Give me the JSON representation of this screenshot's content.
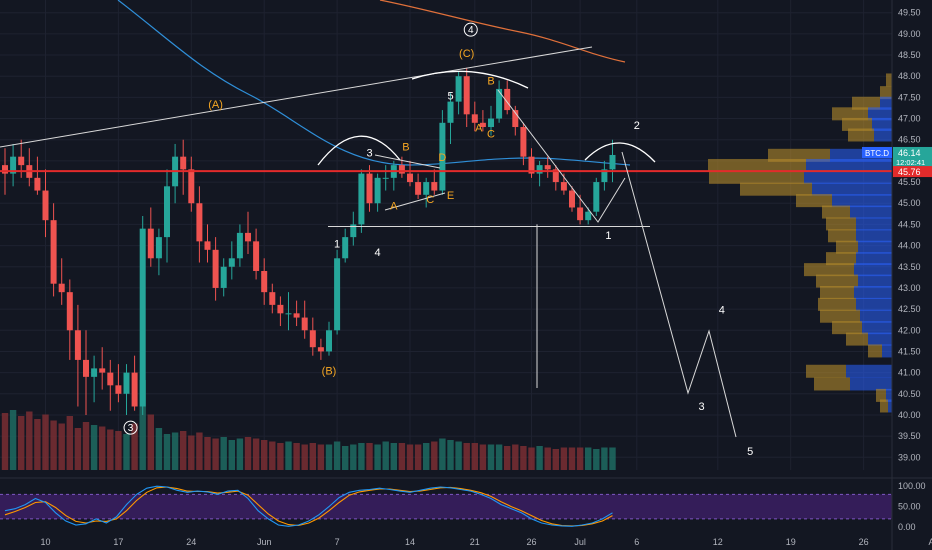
{
  "chart_data": [
    {
      "type": "candlestick",
      "symbol": "BTC.D",
      "last_price": "46.14",
      "countdown": "12:02:41",
      "line_price": "45.76",
      "ylim": [
        38.7,
        49.8
      ],
      "y_ticks": [
        "39.00",
        "39.50",
        "40.00",
        "40.50",
        "41.00",
        "41.50",
        "42.00",
        "42.50",
        "43.00",
        "43.50",
        "44.00",
        "44.50",
        "45.00",
        "45.50",
        "46.00",
        "46.50",
        "47.00",
        "47.50",
        "48.00",
        "48.50",
        "49.00",
        "49.50"
      ],
      "x_ticks": [
        "10",
        "17",
        "24",
        "Jun",
        "7",
        "14",
        "21",
        "26",
        "Jul",
        "6",
        "12",
        "19",
        "26",
        "Aug"
      ],
      "candles": [
        [
          45.9,
          46.3,
          45.2,
          45.7
        ],
        [
          45.7,
          46.4,
          45.4,
          46.1
        ],
        [
          46.1,
          46.5,
          45.6,
          45.9
        ],
        [
          45.9,
          46.3,
          45.4,
          45.6
        ],
        [
          45.6,
          46.1,
          45.2,
          45.3
        ],
        [
          45.3,
          45.8,
          44.2,
          44.6
        ],
        [
          44.6,
          45.0,
          42.8,
          43.1
        ],
        [
          43.1,
          43.7,
          42.6,
          42.9
        ],
        [
          42.9,
          43.2,
          41.3,
          42.0
        ],
        [
          42.0,
          42.6,
          40.2,
          41.3
        ],
        [
          41.3,
          42.0,
          40.0,
          40.9
        ],
        [
          40.9,
          41.4,
          40.3,
          41.1
        ],
        [
          41.1,
          41.6,
          40.6,
          41.0
        ],
        [
          41.0,
          41.3,
          40.1,
          40.7
        ],
        [
          40.7,
          41.2,
          40.3,
          40.5
        ],
        [
          40.5,
          41.2,
          40.0,
          41.0
        ],
        [
          41.0,
          41.4,
          40.1,
          40.2
        ],
        [
          40.2,
          44.7,
          40.0,
          44.4
        ],
        [
          44.4,
          44.9,
          43.5,
          43.7
        ],
        [
          43.7,
          44.4,
          43.3,
          44.2
        ],
        [
          44.2,
          45.8,
          43.6,
          45.4
        ],
        [
          45.4,
          46.4,
          45.0,
          46.1
        ],
        [
          46.1,
          46.5,
          45.2,
          45.8
        ],
        [
          45.8,
          46.1,
          44.8,
          45.0
        ],
        [
          45.0,
          45.4,
          43.6,
          44.1
        ],
        [
          44.1,
          44.5,
          43.6,
          43.9
        ],
        [
          43.9,
          44.2,
          42.7,
          43.0
        ],
        [
          43.0,
          43.7,
          42.8,
          43.5
        ],
        [
          43.5,
          44.1,
          43.2,
          43.7
        ],
        [
          43.7,
          44.5,
          43.5,
          44.3
        ],
        [
          44.3,
          44.8,
          43.8,
          44.1
        ],
        [
          44.1,
          44.4,
          43.2,
          43.4
        ],
        [
          43.4,
          43.7,
          42.6,
          42.9
        ],
        [
          42.9,
          43.1,
          42.4,
          42.6
        ],
        [
          42.6,
          42.8,
          42.1,
          42.4
        ],
        [
          42.4,
          42.9,
          42.0,
          42.4
        ],
        [
          42.4,
          42.7,
          42.1,
          42.3
        ],
        [
          42.3,
          42.7,
          41.8,
          42.0
        ],
        [
          42.0,
          42.3,
          41.4,
          41.6
        ],
        [
          41.6,
          41.8,
          41.3,
          41.5
        ],
        [
          41.5,
          42.2,
          41.4,
          42.0
        ],
        [
          42.0,
          43.9,
          41.9,
          43.7
        ],
        [
          43.7,
          44.4,
          43.6,
          44.2
        ],
        [
          44.2,
          44.8,
          44.0,
          44.5
        ],
        [
          44.5,
          45.8,
          44.3,
          45.7
        ],
        [
          45.7,
          45.9,
          44.8,
          45.0
        ],
        [
          45.0,
          45.7,
          44.8,
          45.6
        ],
        [
          45.6,
          45.9,
          45.3,
          45.6
        ],
        [
          45.6,
          46.0,
          45.3,
          45.9
        ],
        [
          45.9,
          46.1,
          45.6,
          45.7
        ],
        [
          45.7,
          46.0,
          45.4,
          45.5
        ],
        [
          45.5,
          45.7,
          45.1,
          45.2
        ],
        [
          45.2,
          45.6,
          44.9,
          45.5
        ],
        [
          45.5,
          45.8,
          45.2,
          45.3
        ],
        [
          45.3,
          47.2,
          45.2,
          46.9
        ],
        [
          46.9,
          47.6,
          46.4,
          47.4
        ],
        [
          47.4,
          48.1,
          47.1,
          48.0
        ],
        [
          48.0,
          48.2,
          46.8,
          47.1
        ],
        [
          47.1,
          47.4,
          46.7,
          46.9
        ],
        [
          46.9,
          47.2,
          46.7,
          46.8
        ],
        [
          46.8,
          47.3,
          46.6,
          47.0
        ],
        [
          47.0,
          47.9,
          46.9,
          47.7
        ],
        [
          47.7,
          47.9,
          47.1,
          47.2
        ],
        [
          47.2,
          47.3,
          46.6,
          46.8
        ],
        [
          46.8,
          46.9,
          45.9,
          46.1
        ],
        [
          46.1,
          46.3,
          45.6,
          45.7
        ],
        [
          45.7,
          46.0,
          45.4,
          45.9
        ],
        [
          45.9,
          46.1,
          45.6,
          45.8
        ],
        [
          45.8,
          45.9,
          45.3,
          45.5
        ],
        [
          45.5,
          45.7,
          45.2,
          45.3
        ],
        [
          45.3,
          45.4,
          44.8,
          44.9
        ],
        [
          44.9,
          45.2,
          44.5,
          44.6
        ],
        [
          44.6,
          44.9,
          44.5,
          44.8
        ],
        [
          44.8,
          45.6,
          44.7,
          45.5
        ],
        [
          45.5,
          46.0,
          45.3,
          45.8
        ],
        [
          45.8,
          46.5,
          45.5,
          46.14
        ]
      ],
      "volume": [
        38,
        40,
        36,
        39,
        34,
        37,
        33,
        31,
        36,
        28,
        32,
        30,
        29,
        27,
        26,
        24,
        31,
        60,
        37,
        28,
        24,
        25,
        26,
        23,
        25,
        22,
        21,
        22,
        20,
        21,
        22,
        21,
        20,
        19,
        18,
        19,
        18,
        17,
        18,
        17,
        17,
        19,
        16,
        17,
        18,
        18,
        17,
        19,
        18,
        18,
        17,
        17,
        18,
        19,
        21,
        20,
        19,
        18,
        18,
        17,
        17,
        17,
        16,
        17,
        16,
        15,
        16,
        15,
        14,
        15,
        15,
        15,
        15,
        14,
        15,
        15
      ],
      "stoch_ylim": [
        -12,
        120
      ],
      "stoch_ticks": [
        "100.00",
        "50.00",
        "0.00"
      ],
      "volume_profile": [
        {
          "price": 47.9,
          "a": 6,
          "b": 0
        },
        {
          "price": 47.6,
          "a": 12,
          "b": 0
        },
        {
          "price": 47.35,
          "a": 28,
          "b": 12
        },
        {
          "price": 47.1,
          "a": 36,
          "b": 24
        },
        {
          "price": 46.85,
          "a": 30,
          "b": 20
        },
        {
          "price": 46.6,
          "a": 26,
          "b": 18
        },
        {
          "price": 46.12,
          "a": 62,
          "b": 62
        },
        {
          "price": 45.88,
          "a": 98,
          "b": 86
        },
        {
          "price": 45.6,
          "a": 95,
          "b": 88
        },
        {
          "price": 45.32,
          "a": 72,
          "b": 80
        },
        {
          "price": 45.05,
          "a": 36,
          "b": 60
        },
        {
          "price": 44.78,
          "a": 28,
          "b": 42
        },
        {
          "price": 44.5,
          "a": 30,
          "b": 36
        },
        {
          "price": 44.22,
          "a": 28,
          "b": 36
        },
        {
          "price": 43.95,
          "a": 22,
          "b": 34
        },
        {
          "price": 43.68,
          "a": 30,
          "b": 36
        },
        {
          "price": 43.42,
          "a": 50,
          "b": 38
        },
        {
          "price": 43.15,
          "a": 42,
          "b": 34
        },
        {
          "price": 42.88,
          "a": 34,
          "b": 38
        },
        {
          "price": 42.6,
          "a": 38,
          "b": 36
        },
        {
          "price": 42.32,
          "a": 40,
          "b": 32
        },
        {
          "price": 42.05,
          "a": 30,
          "b": 30
        },
        {
          "price": 41.78,
          "a": 22,
          "b": 24
        },
        {
          "price": 41.5,
          "a": 14,
          "b": 10
        },
        {
          "price": 41.02,
          "a": 40,
          "b": 46
        },
        {
          "price": 40.72,
          "a": 36,
          "b": 42
        },
        {
          "price": 40.45,
          "a": 10,
          "b": 6
        },
        {
          "price": 40.2,
          "a": 8,
          "b": 4
        }
      ],
      "annotations": {
        "ew_small": [
          {
            "text": "(A)",
            "i": 26,
            "p": 47.25,
            "color": "#f5a623"
          },
          {
            "text": "(B)",
            "i": 40,
            "p": 40.95,
            "color": "#f5a623"
          },
          {
            "text": "(C)",
            "i": 57,
            "p": 48.45,
            "color": "#f5a623"
          },
          {
            "text": "B",
            "i": 49.5,
            "p": 46.25,
            "color": "#f5a623"
          },
          {
            "text": "D",
            "i": 54,
            "p": 46.0,
            "color": "#f5a623"
          },
          {
            "text": "A",
            "i": 48,
            "p": 44.85,
            "color": "#f5a623"
          },
          {
            "text": "C",
            "i": 52.5,
            "p": 45.0,
            "color": "#f5a623"
          },
          {
            "text": "E",
            "i": 55,
            "p": 45.1,
            "color": "#f5a623"
          },
          {
            "text": "A",
            "i": 58.5,
            "p": 46.7,
            "color": "#f5a623"
          },
          {
            "text": "B",
            "i": 60,
            "p": 47.8,
            "color": "#f5a623"
          },
          {
            "text": "C",
            "i": 60,
            "p": 46.55,
            "color": "#f5a623"
          }
        ],
        "ew_white": [
          {
            "text": "1",
            "i": 41,
            "p": 43.95
          },
          {
            "text": "4",
            "i": 46,
            "p": 43.75
          },
          {
            "text": "3",
            "i": 45,
            "p": 46.1
          },
          {
            "text": "5",
            "i": 55,
            "p": 47.45
          },
          {
            "text": "2",
            "i": 78,
            "p": 46.75
          },
          {
            "text": "1",
            "i": 74.5,
            "p": 44.15
          },
          {
            "text": "4",
            "i": 88.5,
            "p": 42.4
          },
          {
            "text": "3",
            "i": 86,
            "p": 40.12
          },
          {
            "text": "5",
            "i": 92,
            "p": 39.05
          }
        ],
        "circled": [
          {
            "text": "4",
            "i": 57.5,
            "p": 49.1
          },
          {
            "text": "3",
            "i": 15.5,
            "p": 39.7
          }
        ]
      }
    }
  ]
}
